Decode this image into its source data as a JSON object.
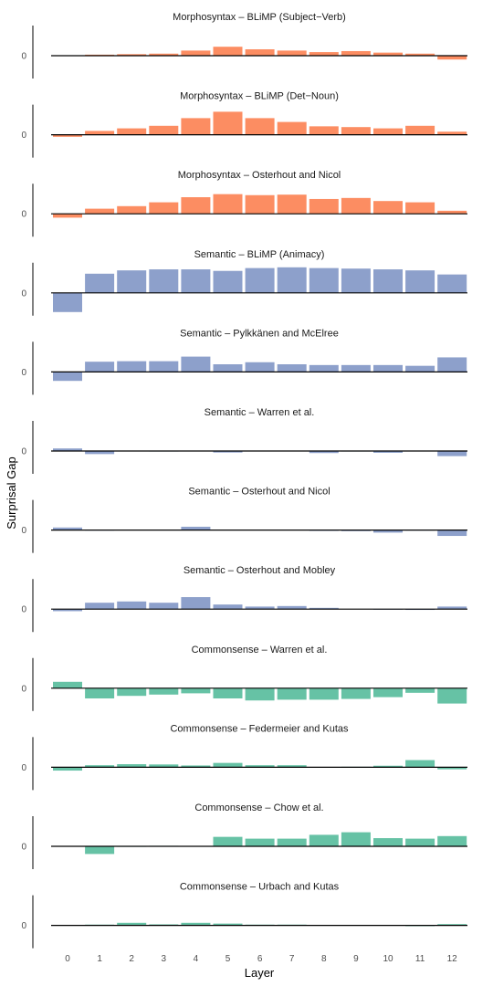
{
  "chart_data": {
    "type": "bar",
    "xlabel": "Layer",
    "ylabel": "Surprisal Gap",
    "categories": [
      "0",
      "1",
      "2",
      "3",
      "4",
      "5",
      "6",
      "7",
      "8",
      "9",
      "10",
      "11",
      "12"
    ],
    "grid": false,
    "panels": [
      {
        "title": "Morphosyntax  –  BLiMP (Subject−Verb)",
        "category": "Morphosyntax",
        "values": [
          0.0,
          0.04,
          0.06,
          0.08,
          0.2,
          0.35,
          0.25,
          0.2,
          0.14,
          0.18,
          0.12,
          0.08,
          -0.15
        ]
      },
      {
        "title": "Morphosyntax  –  BLiMP (Det−Noun)",
        "category": "Morphosyntax",
        "values": [
          -0.08,
          0.15,
          0.25,
          0.35,
          0.65,
          0.9,
          0.65,
          0.5,
          0.33,
          0.3,
          0.25,
          0.35,
          0.12
        ]
      },
      {
        "title": "Morphosyntax  –  Osterhout and Nicol",
        "category": "Morphosyntax",
        "values": [
          -0.15,
          0.2,
          0.3,
          0.45,
          0.65,
          0.77,
          0.73,
          0.75,
          0.58,
          0.62,
          0.5,
          0.45,
          0.12
        ]
      },
      {
        "title": "Semantic  –  BLiMP (Animacy)",
        "category": "Semantic",
        "values": [
          -0.75,
          0.75,
          0.88,
          0.92,
          0.92,
          0.86,
          0.97,
          1.0,
          0.97,
          0.95,
          0.92,
          0.88,
          0.72
        ]
      },
      {
        "title": "Semantic  –  Pylkkänen and McElree",
        "category": "Semantic",
        "values": [
          -0.35,
          0.4,
          0.42,
          0.42,
          0.6,
          0.3,
          0.38,
          0.3,
          0.27,
          0.27,
          0.27,
          0.24,
          0.57
        ]
      },
      {
        "title": "Semantic  –  Warren et al.",
        "category": "Semantic",
        "values": [
          0.1,
          -0.12,
          0.0,
          -0.02,
          0.0,
          -0.06,
          0.0,
          0.0,
          -0.08,
          -0.02,
          -0.07,
          0.0,
          -0.2
        ]
      },
      {
        "title": "Semantic  –  Osterhout and Nicol",
        "category": "Semantic",
        "values": [
          0.1,
          -0.02,
          0.0,
          0.0,
          0.13,
          0.0,
          0.0,
          0.0,
          -0.03,
          -0.04,
          -0.1,
          -0.02,
          -0.23
        ]
      },
      {
        "title": "Semantic  –  Osterhout and Mobley",
        "category": "Semantic",
        "values": [
          -0.08,
          0.25,
          0.3,
          0.25,
          0.47,
          0.18,
          0.1,
          0.12,
          0.05,
          0.0,
          -0.02,
          -0.03,
          0.1
        ]
      },
      {
        "title": "Commonsense  –  Warren et al.",
        "category": "Commonsense",
        "values": [
          0.25,
          -0.4,
          -0.3,
          -0.25,
          -0.2,
          -0.4,
          -0.48,
          -0.45,
          -0.45,
          -0.42,
          -0.35,
          -0.18,
          -0.6
        ]
      },
      {
        "title": "Commonsense  –  Federmeier and Kutas",
        "category": "Commonsense",
        "values": [
          -0.13,
          0.08,
          0.12,
          0.11,
          0.07,
          0.17,
          0.08,
          0.08,
          0.0,
          0.02,
          0.06,
          0.28,
          -0.08
        ]
      },
      {
        "title": "Commonsense  –  Chow et al.",
        "category": "Commonsense",
        "values": [
          0.0,
          -0.3,
          -0.02,
          0.02,
          0.0,
          0.37,
          0.3,
          0.3,
          0.45,
          0.55,
          0.32,
          0.3,
          0.4
        ]
      },
      {
        "title": "Commonsense  –  Urbach and Kutas",
        "category": "Commonsense",
        "values": [
          0.0,
          0.03,
          0.1,
          0.04,
          0.1,
          0.07,
          0.03,
          0.03,
          0.0,
          0.0,
          0.0,
          -0.03,
          0.05
        ]
      }
    ],
    "colors": {
      "Morphosyntax": "#fc8d62",
      "Semantic": "#8da0cb",
      "Commonsense": "#66c2a5"
    }
  }
}
